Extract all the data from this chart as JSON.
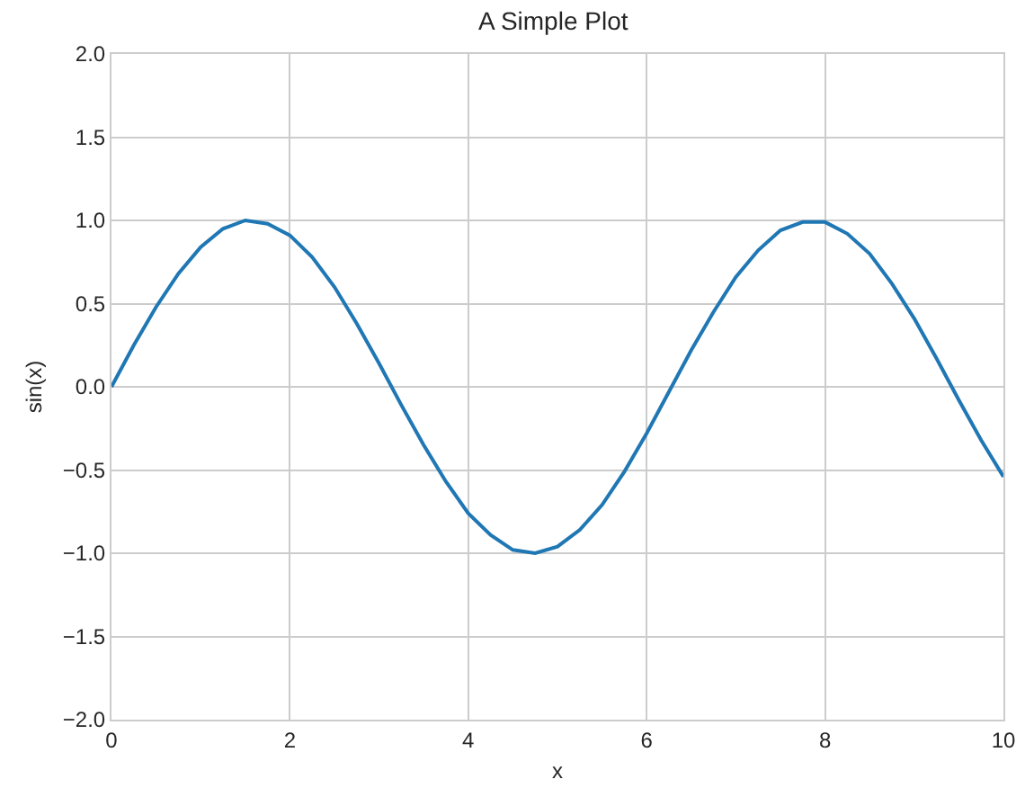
{
  "chart_data": {
    "type": "line",
    "title": "A Simple Plot",
    "xlabel": "x",
    "ylabel": "sin(x)",
    "x": [
      0,
      0.25,
      0.5,
      0.75,
      1,
      1.25,
      1.5,
      1.75,
      2,
      2.25,
      2.5,
      2.75,
      3,
      3.25,
      3.5,
      3.75,
      4,
      4.25,
      4.5,
      4.75,
      5,
      5.25,
      5.5,
      5.75,
      6,
      6.25,
      6.5,
      6.75,
      7,
      7.25,
      7.5,
      7.75,
      8,
      8.25,
      8.5,
      8.75,
      9,
      9.25,
      9.5,
      9.75,
      10
    ],
    "values": [
      0.0,
      0.25,
      0.48,
      0.68,
      0.84,
      0.95,
      1.0,
      0.98,
      0.91,
      0.78,
      0.6,
      0.38,
      0.14,
      -0.11,
      -0.35,
      -0.57,
      -0.76,
      -0.89,
      -0.98,
      -1.0,
      -0.96,
      -0.86,
      -0.71,
      -0.51,
      -0.28,
      -0.03,
      0.22,
      0.45,
      0.66,
      0.82,
      0.94,
      0.99,
      0.99,
      0.92,
      0.8,
      0.62,
      0.41,
      0.17,
      -0.08,
      -0.32,
      -0.54
    ],
    "color": "#1f77b4",
    "xlim": [
      0,
      10
    ],
    "ylim": [
      -2,
      2
    ],
    "xticks": [
      0,
      2,
      4,
      6,
      8,
      10
    ],
    "yticks": [
      {
        "value": -2,
        "label": "−2.0"
      },
      {
        "value": -1.5,
        "label": "−1.5"
      },
      {
        "value": -1,
        "label": "−1.0"
      },
      {
        "value": -0.5,
        "label": "−0.5"
      },
      {
        "value": 0,
        "label": "0.0"
      },
      {
        "value": 0.5,
        "label": "0.5"
      },
      {
        "value": 1,
        "label": "1.0"
      },
      {
        "value": 1.5,
        "label": "1.5"
      },
      {
        "value": 2,
        "label": "2.0"
      }
    ],
    "grid": true
  }
}
